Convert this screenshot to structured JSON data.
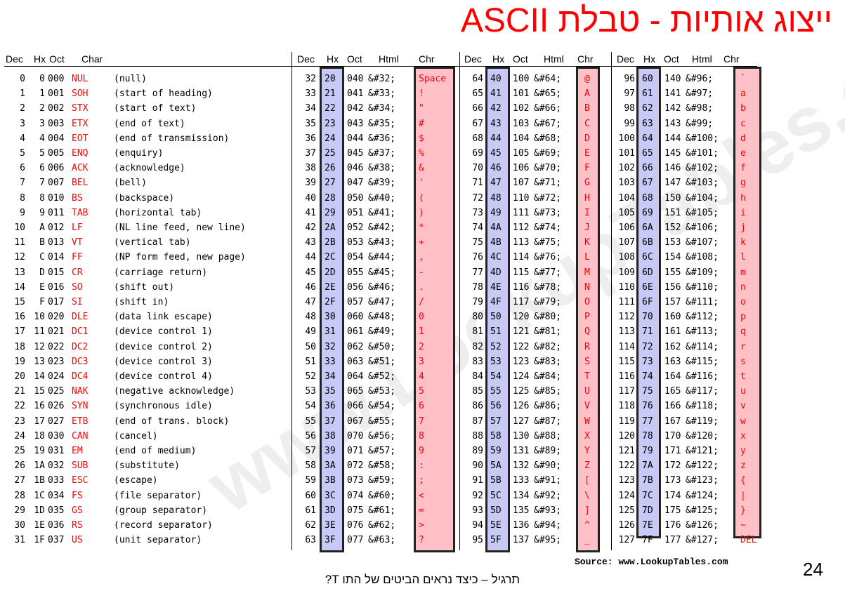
{
  "title": "ייצוג אותיות - טבלת ASCII",
  "headers": {
    "left": [
      "Dec",
      "Hx",
      "Oct",
      "Char"
    ],
    "group": [
      "Dec",
      "Hx",
      "Oct",
      "Html",
      "Chr"
    ]
  },
  "columns": [
    {
      "rows": [
        {
          "dec": "0",
          "hex": "0",
          "oct": "000",
          "code": "NUL",
          "desc": "(null)"
        },
        {
          "dec": "1",
          "hex": "1",
          "oct": "001",
          "code": "SOH",
          "desc": "(start of heading)"
        },
        {
          "dec": "2",
          "hex": "2",
          "oct": "002",
          "code": "STX",
          "desc": "(start of text)"
        },
        {
          "dec": "3",
          "hex": "3",
          "oct": "003",
          "code": "ETX",
          "desc": "(end of text)"
        },
        {
          "dec": "4",
          "hex": "4",
          "oct": "004",
          "code": "EOT",
          "desc": "(end of transmission)"
        },
        {
          "dec": "5",
          "hex": "5",
          "oct": "005",
          "code": "ENQ",
          "desc": "(enquiry)"
        },
        {
          "dec": "6",
          "hex": "6",
          "oct": "006",
          "code": "ACK",
          "desc": "(acknowledge)"
        },
        {
          "dec": "7",
          "hex": "7",
          "oct": "007",
          "code": "BEL",
          "desc": "(bell)"
        },
        {
          "dec": "8",
          "hex": "8",
          "oct": "010",
          "code": "BS",
          "desc": "(backspace)"
        },
        {
          "dec": "9",
          "hex": "9",
          "oct": "011",
          "code": "TAB",
          "desc": "(horizontal tab)"
        },
        {
          "dec": "10",
          "hex": "A",
          "oct": "012",
          "code": "LF",
          "desc": "(NL line feed, new line)"
        },
        {
          "dec": "11",
          "hex": "B",
          "oct": "013",
          "code": "VT",
          "desc": "(vertical tab)"
        },
        {
          "dec": "12",
          "hex": "C",
          "oct": "014",
          "code": "FF",
          "desc": "(NP form feed, new page)"
        },
        {
          "dec": "13",
          "hex": "D",
          "oct": "015",
          "code": "CR",
          "desc": "(carriage return)"
        },
        {
          "dec": "14",
          "hex": "E",
          "oct": "016",
          "code": "SO",
          "desc": "(shift out)"
        },
        {
          "dec": "15",
          "hex": "F",
          "oct": "017",
          "code": "SI",
          "desc": "(shift in)"
        },
        {
          "dec": "16",
          "hex": "10",
          "oct": "020",
          "code": "DLE",
          "desc": "(data link escape)"
        },
        {
          "dec": "17",
          "hex": "11",
          "oct": "021",
          "code": "DC1",
          "desc": "(device control 1)"
        },
        {
          "dec": "18",
          "hex": "12",
          "oct": "022",
          "code": "DC2",
          "desc": "(device control 2)"
        },
        {
          "dec": "19",
          "hex": "13",
          "oct": "023",
          "code": "DC3",
          "desc": "(device control 3)"
        },
        {
          "dec": "20",
          "hex": "14",
          "oct": "024",
          "code": "DC4",
          "desc": "(device control 4)"
        },
        {
          "dec": "21",
          "hex": "15",
          "oct": "025",
          "code": "NAK",
          "desc": "(negative acknowledge)"
        },
        {
          "dec": "22",
          "hex": "16",
          "oct": "026",
          "code": "SYN",
          "desc": "(synchronous idle)"
        },
        {
          "dec": "23",
          "hex": "17",
          "oct": "027",
          "code": "ETB",
          "desc": "(end of trans. block)"
        },
        {
          "dec": "24",
          "hex": "18",
          "oct": "030",
          "code": "CAN",
          "desc": "(cancel)"
        },
        {
          "dec": "25",
          "hex": "19",
          "oct": "031",
          "code": "EM",
          "desc": "(end of medium)"
        },
        {
          "dec": "26",
          "hex": "1A",
          "oct": "032",
          "code": "SUB",
          "desc": "(substitute)"
        },
        {
          "dec": "27",
          "hex": "1B",
          "oct": "033",
          "code": "ESC",
          "desc": "(escape)"
        },
        {
          "dec": "28",
          "hex": "1C",
          "oct": "034",
          "code": "FS",
          "desc": "(file separator)"
        },
        {
          "dec": "29",
          "hex": "1D",
          "oct": "035",
          "code": "GS",
          "desc": "(group separator)"
        },
        {
          "dec": "30",
          "hex": "1E",
          "oct": "036",
          "code": "RS",
          "desc": "(record separator)"
        },
        {
          "dec": "31",
          "hex": "1F",
          "oct": "037",
          "code": "US",
          "desc": "(unit separator)"
        }
      ]
    },
    {
      "rows": [
        {
          "dec": "32",
          "hex": "20",
          "oct": "040",
          "html": "&#32;",
          "chr": "Space"
        },
        {
          "dec": "33",
          "hex": "21",
          "oct": "041",
          "html": "&#33;",
          "chr": "!"
        },
        {
          "dec": "34",
          "hex": "22",
          "oct": "042",
          "html": "&#34;",
          "chr": "\""
        },
        {
          "dec": "35",
          "hex": "23",
          "oct": "043",
          "html": "&#35;",
          "chr": "#"
        },
        {
          "dec": "36",
          "hex": "24",
          "oct": "044",
          "html": "&#36;",
          "chr": "$"
        },
        {
          "dec": "37",
          "hex": "25",
          "oct": "045",
          "html": "&#37;",
          "chr": "%"
        },
        {
          "dec": "38",
          "hex": "26",
          "oct": "046",
          "html": "&#38;",
          "chr": "&"
        },
        {
          "dec": "39",
          "hex": "27",
          "oct": "047",
          "html": "&#39;",
          "chr": "'"
        },
        {
          "dec": "40",
          "hex": "28",
          "oct": "050",
          "html": "&#40;",
          "chr": "("
        },
        {
          "dec": "41",
          "hex": "29",
          "oct": "051",
          "html": "&#41;",
          "chr": ")"
        },
        {
          "dec": "42",
          "hex": "2A",
          "oct": "052",
          "html": "&#42;",
          "chr": "*"
        },
        {
          "dec": "43",
          "hex": "2B",
          "oct": "053",
          "html": "&#43;",
          "chr": "+"
        },
        {
          "dec": "44",
          "hex": "2C",
          "oct": "054",
          "html": "&#44;",
          "chr": ","
        },
        {
          "dec": "45",
          "hex": "2D",
          "oct": "055",
          "html": "&#45;",
          "chr": "-"
        },
        {
          "dec": "46",
          "hex": "2E",
          "oct": "056",
          "html": "&#46;",
          "chr": "."
        },
        {
          "dec": "47",
          "hex": "2F",
          "oct": "057",
          "html": "&#47;",
          "chr": "/"
        },
        {
          "dec": "48",
          "hex": "30",
          "oct": "060",
          "html": "&#48;",
          "chr": "0"
        },
        {
          "dec": "49",
          "hex": "31",
          "oct": "061",
          "html": "&#49;",
          "chr": "1"
        },
        {
          "dec": "50",
          "hex": "32",
          "oct": "062",
          "html": "&#50;",
          "chr": "2"
        },
        {
          "dec": "51",
          "hex": "33",
          "oct": "063",
          "html": "&#51;",
          "chr": "3"
        },
        {
          "dec": "52",
          "hex": "34",
          "oct": "064",
          "html": "&#52;",
          "chr": "4"
        },
        {
          "dec": "53",
          "hex": "35",
          "oct": "065",
          "html": "&#53;",
          "chr": "5"
        },
        {
          "dec": "54",
          "hex": "36",
          "oct": "066",
          "html": "&#54;",
          "chr": "6"
        },
        {
          "dec": "55",
          "hex": "37",
          "oct": "067",
          "html": "&#55;",
          "chr": "7"
        },
        {
          "dec": "56",
          "hex": "38",
          "oct": "070",
          "html": "&#56;",
          "chr": "8"
        },
        {
          "dec": "57",
          "hex": "39",
          "oct": "071",
          "html": "&#57;",
          "chr": "9"
        },
        {
          "dec": "58",
          "hex": "3A",
          "oct": "072",
          "html": "&#58;",
          "chr": ":"
        },
        {
          "dec": "59",
          "hex": "3B",
          "oct": "073",
          "html": "&#59;",
          "chr": ";"
        },
        {
          "dec": "60",
          "hex": "3C",
          "oct": "074",
          "html": "&#60;",
          "chr": "<"
        },
        {
          "dec": "61",
          "hex": "3D",
          "oct": "075",
          "html": "&#61;",
          "chr": "="
        },
        {
          "dec": "62",
          "hex": "3E",
          "oct": "076",
          "html": "&#62;",
          "chr": ">"
        },
        {
          "dec": "63",
          "hex": "3F",
          "oct": "077",
          "html": "&#63;",
          "chr": "?"
        }
      ]
    },
    {
      "rows": [
        {
          "dec": "64",
          "hex": "40",
          "oct": "100",
          "html": "&#64;",
          "chr": "@"
        },
        {
          "dec": "65",
          "hex": "41",
          "oct": "101",
          "html": "&#65;",
          "chr": "A"
        },
        {
          "dec": "66",
          "hex": "42",
          "oct": "102",
          "html": "&#66;",
          "chr": "B"
        },
        {
          "dec": "67",
          "hex": "43",
          "oct": "103",
          "html": "&#67;",
          "chr": "C"
        },
        {
          "dec": "68",
          "hex": "44",
          "oct": "104",
          "html": "&#68;",
          "chr": "D"
        },
        {
          "dec": "69",
          "hex": "45",
          "oct": "105",
          "html": "&#69;",
          "chr": "E"
        },
        {
          "dec": "70",
          "hex": "46",
          "oct": "106",
          "html": "&#70;",
          "chr": "F"
        },
        {
          "dec": "71",
          "hex": "47",
          "oct": "107",
          "html": "&#71;",
          "chr": "G"
        },
        {
          "dec": "72",
          "hex": "48",
          "oct": "110",
          "html": "&#72;",
          "chr": "H"
        },
        {
          "dec": "73",
          "hex": "49",
          "oct": "111",
          "html": "&#73;",
          "chr": "I"
        },
        {
          "dec": "74",
          "hex": "4A",
          "oct": "112",
          "html": "&#74;",
          "chr": "J"
        },
        {
          "dec": "75",
          "hex": "4B",
          "oct": "113",
          "html": "&#75;",
          "chr": "K"
        },
        {
          "dec": "76",
          "hex": "4C",
          "oct": "114",
          "html": "&#76;",
          "chr": "L"
        },
        {
          "dec": "77",
          "hex": "4D",
          "oct": "115",
          "html": "&#77;",
          "chr": "M"
        },
        {
          "dec": "78",
          "hex": "4E",
          "oct": "116",
          "html": "&#78;",
          "chr": "N"
        },
        {
          "dec": "79",
          "hex": "4F",
          "oct": "117",
          "html": "&#79;",
          "chr": "O"
        },
        {
          "dec": "80",
          "hex": "50",
          "oct": "120",
          "html": "&#80;",
          "chr": "P"
        },
        {
          "dec": "81",
          "hex": "51",
          "oct": "121",
          "html": "&#81;",
          "chr": "Q"
        },
        {
          "dec": "82",
          "hex": "52",
          "oct": "122",
          "html": "&#82;",
          "chr": "R"
        },
        {
          "dec": "83",
          "hex": "53",
          "oct": "123",
          "html": "&#83;",
          "chr": "S"
        },
        {
          "dec": "84",
          "hex": "54",
          "oct": "124",
          "html": "&#84;",
          "chr": "T"
        },
        {
          "dec": "85",
          "hex": "55",
          "oct": "125",
          "html": "&#85;",
          "chr": "U"
        },
        {
          "dec": "86",
          "hex": "56",
          "oct": "126",
          "html": "&#86;",
          "chr": "V"
        },
        {
          "dec": "87",
          "hex": "57",
          "oct": "127",
          "html": "&#87;",
          "chr": "W"
        },
        {
          "dec": "88",
          "hex": "58",
          "oct": "130",
          "html": "&#88;",
          "chr": "X"
        },
        {
          "dec": "89",
          "hex": "59",
          "oct": "131",
          "html": "&#89;",
          "chr": "Y"
        },
        {
          "dec": "90",
          "hex": "5A",
          "oct": "132",
          "html": "&#90;",
          "chr": "Z"
        },
        {
          "dec": "91",
          "hex": "5B",
          "oct": "133",
          "html": "&#91;",
          "chr": "["
        },
        {
          "dec": "92",
          "hex": "5C",
          "oct": "134",
          "html": "&#92;",
          "chr": "\\"
        },
        {
          "dec": "93",
          "hex": "5D",
          "oct": "135",
          "html": "&#93;",
          "chr": "]"
        },
        {
          "dec": "94",
          "hex": "5E",
          "oct": "136",
          "html": "&#94;",
          "chr": "^"
        },
        {
          "dec": "95",
          "hex": "5F",
          "oct": "137",
          "html": "&#95;",
          "chr": "_"
        }
      ]
    },
    {
      "rows": [
        {
          "dec": "96",
          "hex": "60",
          "oct": "140",
          "html": "&#96;",
          "chr": "`"
        },
        {
          "dec": "97",
          "hex": "61",
          "oct": "141",
          "html": "&#97;",
          "chr": "a"
        },
        {
          "dec": "98",
          "hex": "62",
          "oct": "142",
          "html": "&#98;",
          "chr": "b"
        },
        {
          "dec": "99",
          "hex": "63",
          "oct": "143",
          "html": "&#99;",
          "chr": "c"
        },
        {
          "dec": "100",
          "hex": "64",
          "oct": "144",
          "html": "&#100;",
          "chr": "d"
        },
        {
          "dec": "101",
          "hex": "65",
          "oct": "145",
          "html": "&#101;",
          "chr": "e"
        },
        {
          "dec": "102",
          "hex": "66",
          "oct": "146",
          "html": "&#102;",
          "chr": "f"
        },
        {
          "dec": "103",
          "hex": "67",
          "oct": "147",
          "html": "&#103;",
          "chr": "g"
        },
        {
          "dec": "104",
          "hex": "68",
          "oct": "150",
          "html": "&#104;",
          "chr": "h"
        },
        {
          "dec": "105",
          "hex": "69",
          "oct": "151",
          "html": "&#105;",
          "chr": "i"
        },
        {
          "dec": "106",
          "hex": "6A",
          "oct": "152",
          "html": "&#106;",
          "chr": "j"
        },
        {
          "dec": "107",
          "hex": "6B",
          "oct": "153",
          "html": "&#107;",
          "chr": "k"
        },
        {
          "dec": "108",
          "hex": "6C",
          "oct": "154",
          "html": "&#108;",
          "chr": "l"
        },
        {
          "dec": "109",
          "hex": "6D",
          "oct": "155",
          "html": "&#109;",
          "chr": "m"
        },
        {
          "dec": "110",
          "hex": "6E",
          "oct": "156",
          "html": "&#110;",
          "chr": "n"
        },
        {
          "dec": "111",
          "hex": "6F",
          "oct": "157",
          "html": "&#111;",
          "chr": "o"
        },
        {
          "dec": "112",
          "hex": "70",
          "oct": "160",
          "html": "&#112;",
          "chr": "p"
        },
        {
          "dec": "113",
          "hex": "71",
          "oct": "161",
          "html": "&#113;",
          "chr": "q"
        },
        {
          "dec": "114",
          "hex": "72",
          "oct": "162",
          "html": "&#114;",
          "chr": "r"
        },
        {
          "dec": "115",
          "hex": "73",
          "oct": "163",
          "html": "&#115;",
          "chr": "s"
        },
        {
          "dec": "116",
          "hex": "74",
          "oct": "164",
          "html": "&#116;",
          "chr": "t"
        },
        {
          "dec": "117",
          "hex": "75",
          "oct": "165",
          "html": "&#117;",
          "chr": "u"
        },
        {
          "dec": "118",
          "hex": "76",
          "oct": "166",
          "html": "&#118;",
          "chr": "v"
        },
        {
          "dec": "119",
          "hex": "77",
          "oct": "167",
          "html": "&#119;",
          "chr": "w"
        },
        {
          "dec": "120",
          "hex": "78",
          "oct": "170",
          "html": "&#120;",
          "chr": "x"
        },
        {
          "dec": "121",
          "hex": "79",
          "oct": "171",
          "html": "&#121;",
          "chr": "y"
        },
        {
          "dec": "122",
          "hex": "7A",
          "oct": "172",
          "html": "&#122;",
          "chr": "z"
        },
        {
          "dec": "123",
          "hex": "7B",
          "oct": "173",
          "html": "&#123;",
          "chr": "{"
        },
        {
          "dec": "124",
          "hex": "7C",
          "oct": "174",
          "html": "&#124;",
          "chr": "|"
        },
        {
          "dec": "125",
          "hex": "7D",
          "oct": "175",
          "html": "&#125;",
          "chr": "}"
        },
        {
          "dec": "126",
          "hex": "7E",
          "oct": "176",
          "html": "&#126;",
          "chr": "~"
        },
        {
          "dec": "127",
          "hex": "7F",
          "oct": "177",
          "html": "&#127;",
          "chr": "DEL"
        }
      ]
    }
  ],
  "watermark": "www.LookupTables.com",
  "source": "Source:  www.LookupTables.com",
  "page_number": "24",
  "footer": "תרגיל – כיצד נראים הביטים של התו T?",
  "colors": {
    "title": "#ff0000",
    "control_code": "#ff0000",
    "hex_highlight": "#c9c9f5",
    "chr_highlight": "#ffc0c8"
  }
}
